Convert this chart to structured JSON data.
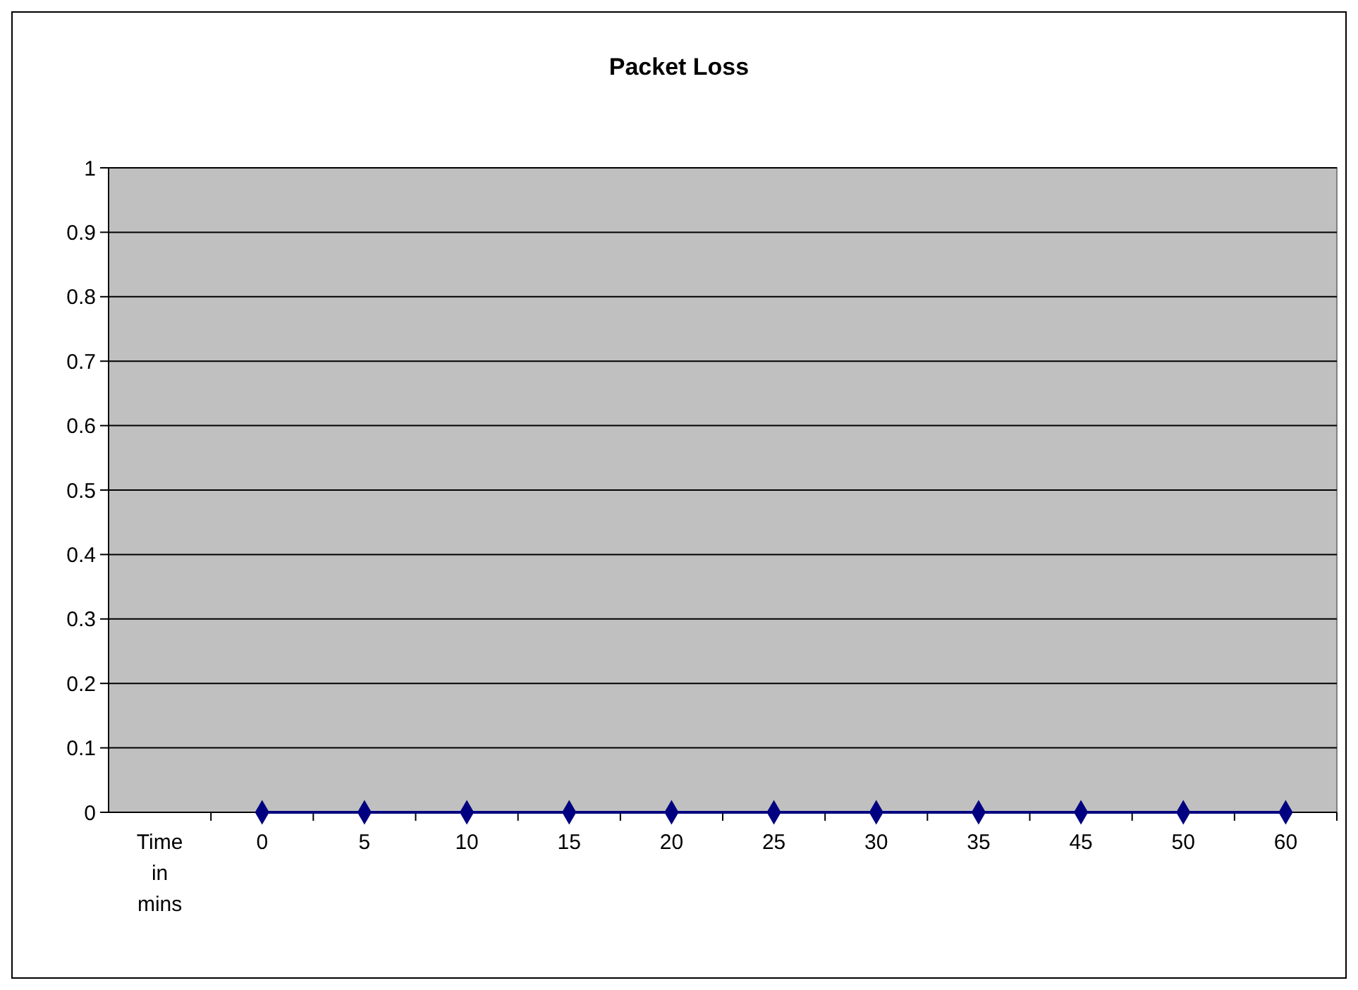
{
  "chart_data": {
    "type": "line",
    "title": "Packet Loss",
    "categories": [
      "Time in mins",
      "0",
      "5",
      "10",
      "15",
      "20",
      "25",
      "30",
      "35",
      "45",
      "50",
      "60"
    ],
    "series": [
      {
        "color": "#000080",
        "values": [
          null,
          0,
          0,
          0,
          0,
          0,
          0,
          0,
          0,
          0,
          0,
          0
        ]
      }
    ],
    "ylim": [
      0,
      1
    ],
    "yticks": [
      0,
      0.1,
      0.2,
      0.3,
      0.4,
      0.5,
      0.6,
      0.7,
      0.8,
      0.9,
      1
    ],
    "grid": "y",
    "marker": "diamond",
    "line_style": "solid"
  }
}
